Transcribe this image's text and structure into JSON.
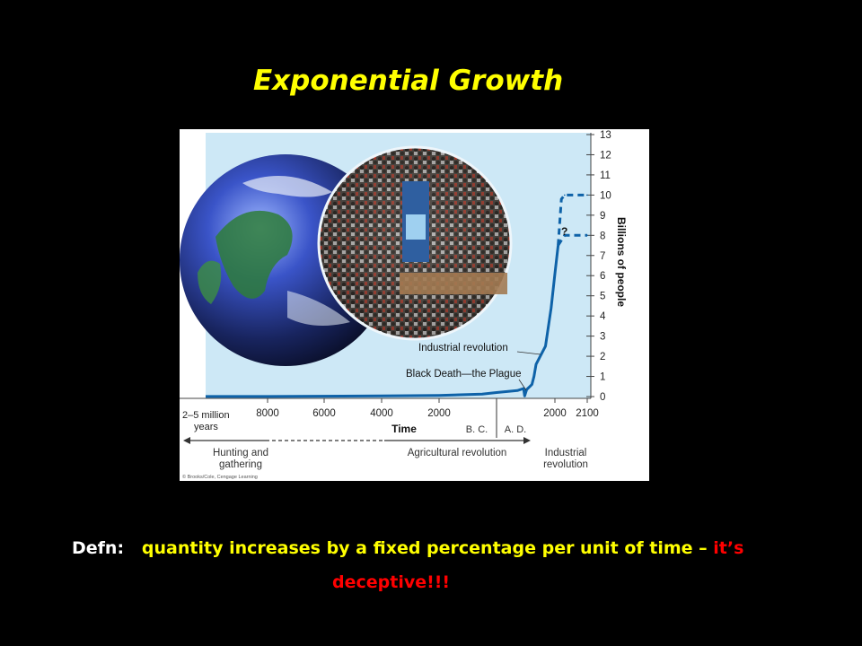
{
  "title": "Exponential Growth",
  "colors": {
    "title": "#ffff00",
    "accent": "#ff0000",
    "curve": "#0e62a8",
    "plot_bg": "#cde8f6",
    "background": "#000000"
  },
  "chart_data": {
    "type": "line",
    "xlabel": "Time",
    "ylabel": "Billions of people",
    "ylim": [
      0,
      13
    ],
    "yticks": [
      "0",
      "1",
      "2",
      "3",
      "4",
      "5",
      "6",
      "7",
      "8",
      "9",
      "10",
      "11",
      "12",
      "13"
    ],
    "xticks": [
      "2–5 million years",
      "8000",
      "6000",
      "4000",
      "2000",
      "2000",
      "2100"
    ],
    "era_labels": [
      "B. C.",
      "A. D."
    ],
    "series": [
      {
        "style": "solid",
        "x": [
          -8000,
          -4000,
          -2000,
          -500,
          0,
          500,
          1000,
          1300,
          1350,
          1450,
          1600,
          1700,
          1800,
          1900,
          1950,
          1980,
          2000,
          2010
        ],
        "y": [
          0.005,
          0.03,
          0.06,
          0.12,
          0.2,
          0.25,
          0.3,
          0.4,
          0.03,
          0.35,
          0.5,
          0.6,
          1.0,
          1.6,
          2.5,
          4.4,
          6.1,
          7.5
        ]
      },
      {
        "style": "dashed",
        "x": [
          2010,
          2020,
          2030,
          2100
        ],
        "y": [
          7.5,
          9.8,
          10,
          10
        ]
      },
      {
        "style": "dashed",
        "x": [
          2010,
          2030,
          2100
        ],
        "y": [
          7.5,
          8,
          8
        ]
      }
    ],
    "annotations": [
      "?",
      "Industrial revolution",
      "Black Death—the Plague"
    ],
    "eras": [
      "Hunting and gathering",
      "Agricultural revolution",
      "Industrial revolution"
    ],
    "credit": "© Brooks/Cole, Cengage Learning"
  },
  "defn": {
    "label": "Defn:",
    "body": "quantity increases by a fixed percentage per unit of time – ",
    "accent_1": "it’s",
    "accent_2": "deceptive!!!"
  }
}
